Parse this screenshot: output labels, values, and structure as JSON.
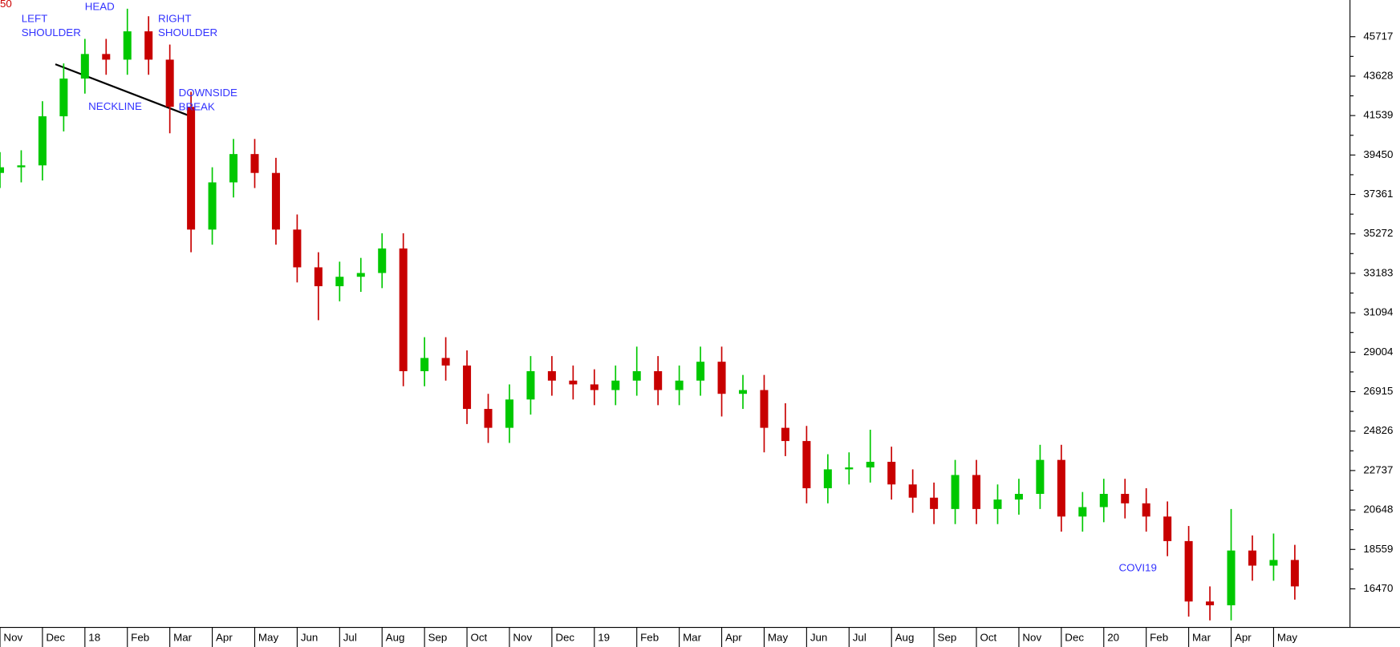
{
  "chart_data": {
    "type": "candlestick",
    "top_left_label": "50",
    "annotations": [
      "LEFT SHOULDER",
      "HEAD",
      "RIGHT SHOULDER",
      "NECKLINE",
      "DOWNSIDE BREAK",
      "COVI19"
    ],
    "up_color": "#00c800",
    "down_color": "#c80000",
    "annotation_color": "#3333ff",
    "xlim": [
      0,
      31.8
    ],
    "xticks": [
      {
        "value": 0,
        "label": "Nov"
      },
      {
        "value": 1,
        "label": "Dec"
      },
      {
        "value": 2,
        "label": "18"
      },
      {
        "value": 3,
        "label": "Feb"
      },
      {
        "value": 4,
        "label": "Mar"
      },
      {
        "value": 5,
        "label": "Apr"
      },
      {
        "value": 6,
        "label": "May"
      },
      {
        "value": 7,
        "label": "Jun"
      },
      {
        "value": 8,
        "label": "Jul"
      },
      {
        "value": 9,
        "label": "Aug"
      },
      {
        "value": 10,
        "label": "Sep"
      },
      {
        "value": 11,
        "label": "Oct"
      },
      {
        "value": 12,
        "label": "Nov"
      },
      {
        "value": 13,
        "label": "Dec"
      },
      {
        "value": 14,
        "label": "19"
      },
      {
        "value": 15,
        "label": "Feb"
      },
      {
        "value": 16,
        "label": "Mar"
      },
      {
        "value": 17,
        "label": "Apr"
      },
      {
        "value": 18,
        "label": "May"
      },
      {
        "value": 19,
        "label": "Jun"
      },
      {
        "value": 20,
        "label": "Jul"
      },
      {
        "value": 21,
        "label": "Aug"
      },
      {
        "value": 22,
        "label": "Sep"
      },
      {
        "value": 23,
        "label": "Oct"
      },
      {
        "value": 24,
        "label": "Nov"
      },
      {
        "value": 25,
        "label": "Dec"
      },
      {
        "value": 26,
        "label": "20"
      },
      {
        "value": 27,
        "label": "Feb"
      },
      {
        "value": 28,
        "label": "Mar"
      },
      {
        "value": 29,
        "label": "Apr"
      },
      {
        "value": 30,
        "label": "May"
      }
    ],
    "ylim": [
      14430,
      47660
    ],
    "yticks": [
      16470,
      18559,
      20648,
      22737,
      24826,
      26915,
      29004,
      31094,
      33183,
      35272,
      37361,
      39450,
      41539,
      43628,
      45717
    ],
    "x": [
      0,
      0.5,
      1,
      1.5,
      2,
      2.5,
      3,
      3.5,
      4,
      4.5,
      5,
      5.5,
      6,
      6.5,
      7,
      7.5,
      8,
      8.5,
      9,
      9.5,
      10,
      10.5,
      11,
      11.5,
      12,
      12.5,
      13,
      13.5,
      14,
      14.5,
      15,
      15.5,
      16,
      16.5,
      17,
      17.5,
      18,
      18.5,
      19,
      19.5,
      20,
      20.5,
      21,
      21.5,
      22,
      22.5,
      23,
      23.5,
      24,
      24.5,
      25,
      25.5,
      26,
      26.5,
      27,
      27.5,
      28,
      28.5,
      29,
      29.5,
      30,
      30.5
    ],
    "open": [
      38500,
      38800,
      38900,
      41500,
      43500,
      44800,
      44500,
      46000,
      44500,
      42000,
      35500,
      38000,
      39500,
      38500,
      35500,
      33500,
      32500,
      33000,
      33200,
      34500,
      28000,
      28700,
      28300,
      26000,
      25000,
      26500,
      28000,
      27500,
      27300,
      27000,
      27500,
      28000,
      27000,
      27500,
      28500,
      26800,
      27000,
      25000,
      24300,
      21800,
      22800,
      22900,
      23200,
      22000,
      21300,
      20700,
      22500,
      20700,
      21200,
      21500,
      23300,
      20300,
      20800,
      21500,
      21000,
      20300,
      19000,
      15800,
      15600,
      18500,
      17700,
      18000
    ],
    "high": [
      39600,
      39700,
      42300,
      44300,
      45600,
      45600,
      47200,
      46800,
      45300,
      42800,
      38800,
      40300,
      40300,
      39300,
      36300,
      34300,
      33800,
      34000,
      35300,
      35300,
      29800,
      29800,
      29100,
      26800,
      27300,
      28800,
      28800,
      28300,
      28100,
      28300,
      29300,
      28800,
      28300,
      29300,
      29300,
      27800,
      27800,
      26300,
      25100,
      23600,
      23700,
      24900,
      24000,
      22800,
      22100,
      23300,
      23300,
      22000,
      22300,
      24100,
      24100,
      21600,
      22300,
      22300,
      21800,
      21100,
      19800,
      16600,
      20700,
      19300,
      19400,
      18800
    ],
    "low": [
      37700,
      38000,
      38100,
      40700,
      42700,
      43700,
      43700,
      43700,
      40600,
      34300,
      34700,
      37200,
      37700,
      34700,
      32700,
      30700,
      31700,
      32200,
      32400,
      27200,
      27200,
      27500,
      25200,
      24200,
      24200,
      25700,
      26700,
      26500,
      26200,
      26200,
      26700,
      26200,
      26200,
      26700,
      25600,
      26000,
      23700,
      23500,
      21000,
      21000,
      22000,
      22100,
      21200,
      20500,
      19900,
      19900,
      19900,
      19900,
      20400,
      20700,
      19500,
      19500,
      20000,
      20200,
      19500,
      18200,
      15000,
      14800,
      14800,
      16900,
      16900,
      15900
    ],
    "close": [
      38800,
      38900,
      41500,
      43500,
      44800,
      44500,
      46000,
      44500,
      42000,
      35500,
      38000,
      39500,
      38500,
      35500,
      33500,
      32500,
      33000,
      33200,
      34500,
      28000,
      28700,
      28300,
      26000,
      25000,
      26500,
      28000,
      27500,
      27300,
      27000,
      27500,
      28000,
      27000,
      27500,
      28500,
      26800,
      27000,
      25000,
      24300,
      21800,
      22800,
      22900,
      23200,
      22000,
      21300,
      20700,
      22500,
      20700,
      21200,
      21500,
      23300,
      20300,
      20800,
      21500,
      21000,
      20300,
      19000,
      15800,
      15600,
      18500,
      17700,
      18000,
      16600
    ]
  }
}
